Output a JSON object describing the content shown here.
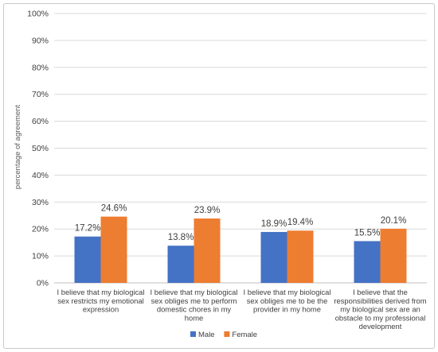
{
  "chart_data": {
    "type": "bar",
    "ylabel": "percentage of agreement",
    "ylim": [
      0,
      100
    ],
    "yticks": [
      "0%",
      "10%",
      "20%",
      "30%",
      "40%",
      "50%",
      "60%",
      "70%",
      "80%",
      "90%",
      "100%"
    ],
    "grid": true,
    "legend_position": "bottom",
    "categories": [
      [
        "I believe that my biological",
        "sex restricts my emotional",
        "expression"
      ],
      [
        "I believe that my biological",
        "sex obliges me to perform",
        "domestic chores in my",
        "home"
      ],
      [
        "I believe that my biological",
        "sex obliges me to be the",
        "provider in my home"
      ],
      [
        "I believe that the",
        "responsibilities derived from",
        "my biological sex are an",
        "obstacle to my professional",
        "development"
      ]
    ],
    "series": [
      {
        "name": "Male",
        "values": [
          17.2,
          13.8,
          18.9,
          15.5
        ],
        "labels": [
          "17.2%",
          "13.8%",
          "18.9%",
          "15.5%"
        ],
        "color": "#4472C4"
      },
      {
        "name": "Female",
        "values": [
          24.6,
          23.9,
          19.4,
          20.1
        ],
        "labels": [
          "24.6%",
          "23.9%",
          "19.4%",
          "20.1%"
        ],
        "color": "#ED7D31"
      }
    ]
  }
}
